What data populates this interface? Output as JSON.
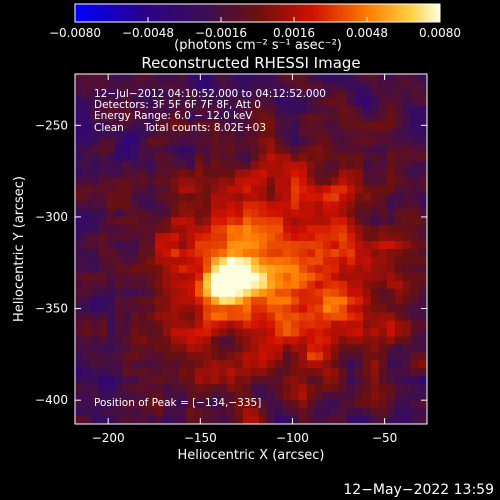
{
  "chart_data": {
    "type": "heatmap",
    "title": "Reconstructed RHESSI Image",
    "xlabel": "Heliocentric X (arcsec)",
    "ylabel": "Heliocentric Y (arcsec)",
    "xlim": [
      -218,
      -27
    ],
    "ylim": [
      -413,
      -222
    ],
    "x_ticks": [
      -200,
      -150,
      -100,
      -50
    ],
    "y_ticks": [
      -250,
      -300,
      -350,
      -400
    ],
    "x_tick_labels": [
      "−200",
      "−150",
      "−100",
      "−50"
    ],
    "y_tick_labels": [
      "−250",
      "−300",
      "−350",
      "−400"
    ],
    "colorbar": {
      "min": -0.008,
      "max": 0.008,
      "ticks": [
        -0.008,
        -0.0048,
        -0.0016,
        0.0016,
        0.0048,
        0.008
      ],
      "tick_labels": [
        "−0.0080",
        "−0.0048",
        "−0.0016",
        "0.0016",
        "0.0048",
        "0.0080"
      ],
      "units_label": "(photons cm⁻² s⁻¹ asec⁻²)"
    },
    "annotations": {
      "time_range": "12−Jul−2012 04:10:52.000 to 04:12:52.000",
      "detectors": "Detectors: 3F 5F 6F 7F 8F, Att 0",
      "energy_range": "Energy Range: 6.0 − 12.0 keV",
      "method": "Clean",
      "total_counts": "Total counts: 8.02E+03",
      "peak_position": "Position of Peak = [−134,−335]"
    },
    "peak": [
      -134,
      -335
    ]
  },
  "footer": {
    "timestamp": "12−May−2022 13:59"
  }
}
